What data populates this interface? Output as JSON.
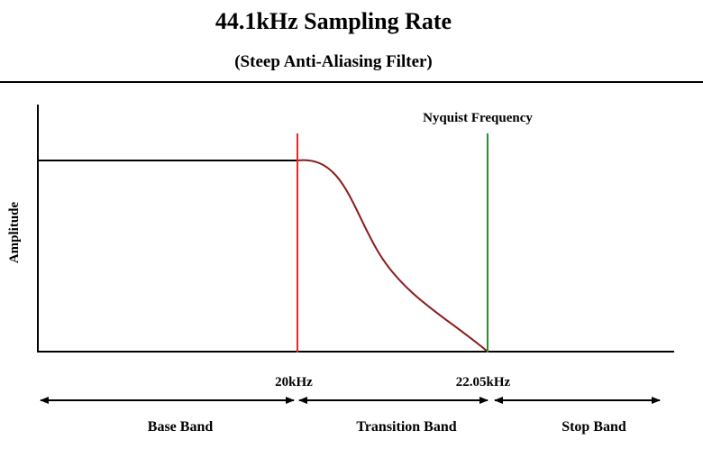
{
  "header": {
    "title": "44.1kHz Sampling Rate",
    "subtitle": "(Steep Anti-Aliasing Filter)"
  },
  "diagram": {
    "y_axis_label": "Amplitude",
    "nyquist_label": "Nyquist Frequency",
    "markers": [
      {
        "label": "20kHz",
        "color": "#e8262a"
      },
      {
        "label": "22.05kHz",
        "color": "#2e8b2e"
      }
    ],
    "bands": [
      {
        "label": "Base Band"
      },
      {
        "label": "Transition Band"
      },
      {
        "label": "Stop Band"
      }
    ],
    "colors": {
      "passband_line": "#000000",
      "rolloff_curve": "#8b1a1a",
      "cutoff_marker": "#e8262a",
      "nyquist_marker": "#2e8b2e"
    }
  }
}
